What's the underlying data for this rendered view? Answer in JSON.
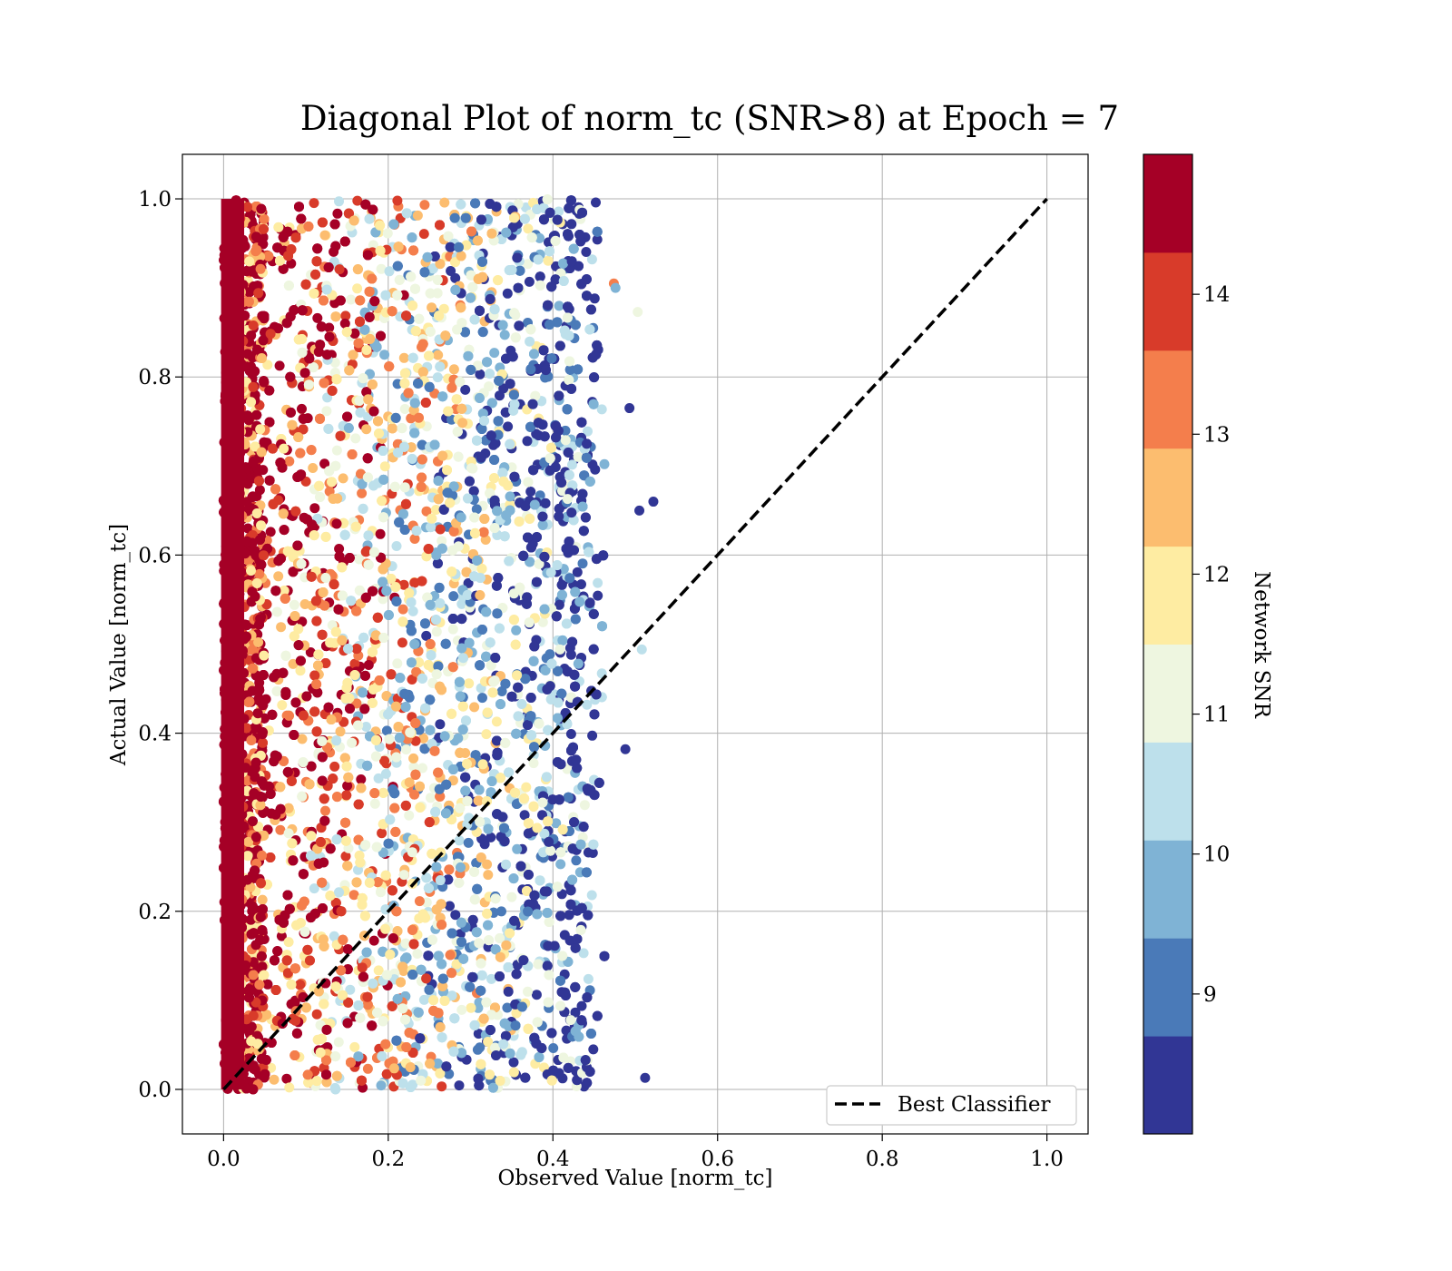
{
  "chart_data": {
    "type": "scatter",
    "title": "Diagonal Plot of norm_tc (SNR>8) at Epoch = 7",
    "xlabel": "Observed Value [norm_tc]",
    "ylabel": "Actual Value [norm_tc]",
    "xlim": [
      -0.05,
      1.05
    ],
    "ylim": [
      -0.05,
      1.05
    ],
    "x_ticks": [
      "0.0",
      "0.2",
      "0.4",
      "0.6",
      "0.8",
      "1.0"
    ],
    "y_ticks": [
      "0.0",
      "0.2",
      "0.4",
      "0.6",
      "0.8",
      "1.0"
    ],
    "grid": true,
    "legend": {
      "position": "lower-right",
      "entries": [
        "Best Classifier"
      ]
    },
    "best_classifier_line": {
      "x": [
        0,
        1
      ],
      "y": [
        0,
        1
      ],
      "style": "dashed",
      "color": "#000000"
    },
    "scatter_description": {
      "x_range_observed": [
        0.0,
        0.52
      ],
      "y_range_actual": [
        0.0,
        1.0
      ],
      "color_variable": "Network SNR",
      "trend": "high SNR points concentrate at low observed values; lower SNR points spread to observed ~0.47"
    },
    "outlier_points": [
      {
        "x": 0.522,
        "y": 0.66,
        "snr": 8.5
      },
      {
        "x": 0.505,
        "y": 0.65,
        "snr": 8.5
      },
      {
        "x": 0.512,
        "y": 0.013,
        "snr": 8.5
      },
      {
        "x": 0.493,
        "y": 0.765,
        "snr": 8.5
      },
      {
        "x": 0.503,
        "y": 0.873,
        "snr": 11.3
      },
      {
        "x": 0.508,
        "y": 0.494,
        "snr": 10.5
      },
      {
        "x": 0.488,
        "y": 0.382,
        "snr": 8.5
      },
      {
        "x": 0.474,
        "y": 0.905,
        "snr": 13.2
      },
      {
        "x": 0.476,
        "y": 0.9,
        "snr": 10.0
      }
    ],
    "colorbar": {
      "label": "Network SNR",
      "range": [
        8.0,
        15.0
      ],
      "ticks": [
        "9",
        "10",
        "11",
        "12",
        "13",
        "14"
      ],
      "bins": [
        {
          "from": 8.0,
          "to": 8.7,
          "color": "#313695"
        },
        {
          "from": 8.7,
          "to": 9.4,
          "color": "#4a7ab8"
        },
        {
          "from": 9.4,
          "to": 10.1,
          "color": "#7fb3d5"
        },
        {
          "from": 10.1,
          "to": 10.8,
          "color": "#bde0eb"
        },
        {
          "from": 10.8,
          "to": 11.5,
          "color": "#eef6e0"
        },
        {
          "from": 11.5,
          "to": 12.2,
          "color": "#feeca2"
        },
        {
          "from": 12.2,
          "to": 12.9,
          "color": "#fcbd6f"
        },
        {
          "from": 12.9,
          "to": 13.6,
          "color": "#f47e4c"
        },
        {
          "from": 13.6,
          "to": 14.3,
          "color": "#d83b2a"
        },
        {
          "from": 14.3,
          "to": 15.0,
          "color": "#a50026"
        }
      ]
    }
  }
}
